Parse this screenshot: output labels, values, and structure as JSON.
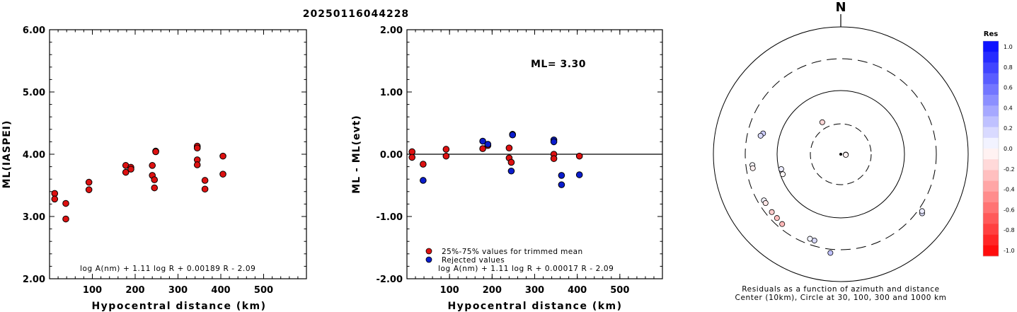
{
  "title": "20250116044228",
  "colors": {
    "trimmed": "#dd1111",
    "rejected": "#0a1ccc",
    "axis": "#000000"
  },
  "left_chart": {
    "ylabel": "ML(IASPEI)",
    "xlabel": "Hypocentral distance (km)",
    "formula": "log A(nm) + 1.11 log R + 0.00189 R - 2.09",
    "xlim": [
      0,
      600
    ],
    "ylim": [
      2,
      6
    ],
    "x_ticks": [
      "100",
      "200",
      "300",
      "400",
      "500"
    ],
    "y_ticks": [
      "2.00",
      "3.00",
      "4.00",
      "5.00",
      "6.00"
    ]
  },
  "middle_chart": {
    "ylabel": "ML - ML(evt)",
    "xlabel": "Hypocentral distance (km)",
    "formula": "log A(nm) + 1.11 log R + 0.00017 R - 2.09",
    "ml_label": "ML= 3.30",
    "legend_trimmed": "25%-75% values for trimmed mean",
    "legend_rejected": "Rejected values",
    "xlim": [
      0,
      600
    ],
    "ylim": [
      -2,
      2
    ],
    "x_ticks": [
      "100",
      "200",
      "300",
      "400",
      "500"
    ],
    "y_ticks": [
      "-2.00",
      "-1.00",
      "0.00",
      "1.00",
      "2.00"
    ]
  },
  "polar": {
    "north_label": "N",
    "caption_line1": "Residuals as a function of azimuth and distance",
    "caption_line2": "Center (10km), Circle at 30, 100, 300 and 1000 km",
    "colorbar_title": "Res",
    "colorbar_ticks": [
      "1.0",
      "0.8",
      "0.6",
      "0.4",
      "0.2",
      "0.0",
      "-0.2",
      "-0.4",
      "-0.6",
      "-0.8",
      "-1.0"
    ]
  },
  "chart_data": [
    {
      "type": "scatter",
      "name": "magnitude-vs-distance",
      "points": [
        {
          "x": 12,
          "y": 3.37
        },
        {
          "x": 12,
          "y": 3.28
        },
        {
          "x": 38,
          "y": 3.21
        },
        {
          "x": 38,
          "y": 2.96
        },
        {
          "x": 92,
          "y": 3.55
        },
        {
          "x": 92,
          "y": 3.43
        },
        {
          "x": 178,
          "y": 3.82
        },
        {
          "x": 178,
          "y": 3.71
        },
        {
          "x": 190,
          "y": 3.79
        },
        {
          "x": 190,
          "y": 3.76
        },
        {
          "x": 240,
          "y": 3.82
        },
        {
          "x": 240,
          "y": 3.66
        },
        {
          "x": 245,
          "y": 3.59
        },
        {
          "x": 245,
          "y": 3.46
        },
        {
          "x": 248,
          "y": 4.05
        },
        {
          "x": 248,
          "y": 4.04
        },
        {
          "x": 345,
          "y": 4.13
        },
        {
          "x": 345,
          "y": 4.1
        },
        {
          "x": 345,
          "y": 3.91
        },
        {
          "x": 345,
          "y": 3.83
        },
        {
          "x": 363,
          "y": 3.58
        },
        {
          "x": 363,
          "y": 3.44
        },
        {
          "x": 405,
          "y": 3.97
        },
        {
          "x": 405,
          "y": 3.68
        }
      ]
    },
    {
      "type": "scatter",
      "name": "residual-vs-distance",
      "series": [
        {
          "category": "trimmed",
          "points": [
            {
              "x": 12,
              "y": 0.04
            },
            {
              "x": 12,
              "y": -0.05
            },
            {
              "x": 38,
              "y": -0.16
            },
            {
              "x": 92,
              "y": 0.08
            },
            {
              "x": 92,
              "y": -0.03
            },
            {
              "x": 178,
              "y": 0.09
            },
            {
              "x": 190,
              "y": 0.14
            },
            {
              "x": 240,
              "y": 0.1
            },
            {
              "x": 240,
              "y": -0.06
            },
            {
              "x": 245,
              "y": -0.13
            },
            {
              "x": 345,
              "y": 0.0
            },
            {
              "x": 345,
              "y": -0.07
            },
            {
              "x": 405,
              "y": -0.03
            }
          ]
        },
        {
          "category": "rejected",
          "points": [
            {
              "x": 38,
              "y": -0.42
            },
            {
              "x": 178,
              "y": 0.21
            },
            {
              "x": 190,
              "y": 0.16
            },
            {
              "x": 245,
              "y": -0.27
            },
            {
              "x": 248,
              "y": 0.32
            },
            {
              "x": 248,
              "y": 0.31
            },
            {
              "x": 345,
              "y": 0.23
            },
            {
              "x": 345,
              "y": 0.2
            },
            {
              "x": 363,
              "y": -0.34
            },
            {
              "x": 363,
              "y": -0.49
            },
            {
              "x": 405,
              "y": -0.33
            }
          ]
        }
      ]
    },
    {
      "type": "scatter",
      "name": "residuals-azimuth-distance",
      "points": [
        {
          "azimuth": 94,
          "distance_km": 12,
          "residual": 0.02
        },
        {
          "azimuth": 97,
          "distance_km": 12,
          "residual": -0.05
        },
        {
          "azimuth": 330,
          "distance_km": 38,
          "residual": -0.16
        },
        {
          "azimuth": 256,
          "distance_km": 92,
          "residual": 0.08
        },
        {
          "azimuth": 251,
          "distance_km": 92,
          "residual": -0.03
        },
        {
          "azimuth": 285,
          "distance_km": 178,
          "residual": 0.2
        },
        {
          "azimuth": 283,
          "distance_km": 190,
          "residual": 0.15
        },
        {
          "azimuth": 263,
          "distance_km": 240,
          "residual": 0.02
        },
        {
          "azimuth": 261,
          "distance_km": 240,
          "residual": -0.06
        },
        {
          "azimuth": 239,
          "distance_km": 245,
          "residual": 0.05
        },
        {
          "azimuth": 237,
          "distance_km": 245,
          "residual": -0.1
        },
        {
          "azimuth": 230,
          "distance_km": 248,
          "residual": -0.2
        },
        {
          "azimuth": 225,
          "distance_km": 250,
          "residual": -0.25
        },
        {
          "azimuth": 220,
          "distance_km": 258,
          "residual": -0.28
        },
        {
          "azimuth": 197,
          "distance_km": 250,
          "residual": 0.15
        },
        {
          "azimuth": 200,
          "distance_km": 248,
          "residual": 0.05
        },
        {
          "azimuth": 186,
          "distance_km": 345,
          "residual": 0.25
        },
        {
          "azimuth": 126,
          "distance_km": 363,
          "residual": 0.12
        },
        {
          "azimuth": 125,
          "distance_km": 345,
          "residual": 0.08
        }
      ]
    }
  ]
}
